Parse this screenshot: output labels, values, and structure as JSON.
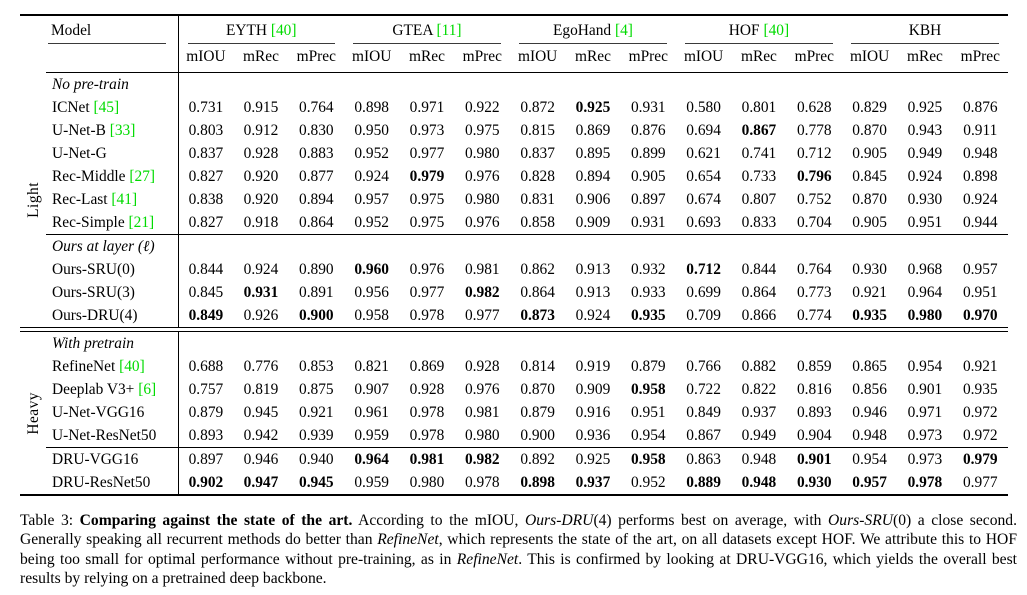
{
  "colors": {
    "citation_green": "#00db00",
    "rule_black": "#000000",
    "cmidrule_gray": "#3a3a3a"
  },
  "table": {
    "header": {
      "model": "Model",
      "metrics": [
        "mIOU",
        "mRec",
        "mPrec"
      ],
      "datasets": [
        {
          "name": "EYTH",
          "cite": "[40]"
        },
        {
          "name": "GTEA",
          "cite": "[11]"
        },
        {
          "name": "EgoHand",
          "cite": "[4]"
        },
        {
          "name": "HOF",
          "cite": "[40]"
        },
        {
          "name": "KBH",
          "cite": ""
        }
      ]
    },
    "groups": [
      {
        "label": "Light",
        "sections": [
          {
            "title": "No pre-train",
            "rows": [
              {
                "model": "ICNet",
                "cite": "[45]",
                "values": [
                  "0.731",
                  "0.915",
                  "0.764",
                  "0.898",
                  "0.971",
                  "0.922",
                  "0.872",
                  "0.925",
                  "0.931",
                  "0.580",
                  "0.801",
                  "0.628",
                  "0.829",
                  "0.925",
                  "0.876"
                ],
                "bold": [
                  7
                ]
              },
              {
                "model": "U-Net-B",
                "cite": "[33]",
                "values": [
                  "0.803",
                  "0.912",
                  "0.830",
                  "0.950",
                  "0.973",
                  "0.975",
                  "0.815",
                  "0.869",
                  "0.876",
                  "0.694",
                  "0.867",
                  "0.778",
                  "0.870",
                  "0.943",
                  "0.911"
                ],
                "bold": [
                  10
                ]
              },
              {
                "model": "U-Net-G",
                "cite": "",
                "values": [
                  "0.837",
                  "0.928",
                  "0.883",
                  "0.952",
                  "0.977",
                  "0.980",
                  "0.837",
                  "0.895",
                  "0.899",
                  "0.621",
                  "0.741",
                  "0.712",
                  "0.905",
                  "0.949",
                  "0.948"
                ],
                "bold": []
              },
              {
                "model": "Rec-Middle",
                "cite": "[27]",
                "values": [
                  "0.827",
                  "0.920",
                  "0.877",
                  "0.924",
                  "0.979",
                  "0.976",
                  "0.828",
                  "0.894",
                  "0.905",
                  "0.654",
                  "0.733",
                  "0.796",
                  "0.845",
                  "0.924",
                  "0.898"
                ],
                "bold": [
                  4,
                  11
                ]
              },
              {
                "model": "Rec-Last",
                "cite": "[41]",
                "values": [
                  "0.838",
                  "0.920",
                  "0.894",
                  "0.957",
                  "0.975",
                  "0.980",
                  "0.831",
                  "0.906",
                  "0.897",
                  "0.674",
                  "0.807",
                  "0.752",
                  "0.870",
                  "0.930",
                  "0.924"
                ],
                "bold": []
              },
              {
                "model": "Rec-Simple",
                "cite": "[21]",
                "values": [
                  "0.827",
                  "0.918",
                  "0.864",
                  "0.952",
                  "0.975",
                  "0.976",
                  "0.858",
                  "0.909",
                  "0.931",
                  "0.693",
                  "0.833",
                  "0.704",
                  "0.905",
                  "0.951",
                  "0.944"
                ],
                "bold": []
              }
            ]
          },
          {
            "title": "Ours at layer (ℓ)",
            "rows": [
              {
                "model": "Ours-SRU(0)",
                "cite": "",
                "values": [
                  "0.844",
                  "0.924",
                  "0.890",
                  "0.960",
                  "0.976",
                  "0.981",
                  "0.862",
                  "0.913",
                  "0.932",
                  "0.712",
                  "0.844",
                  "0.764",
                  "0.930",
                  "0.968",
                  "0.957"
                ],
                "bold": [
                  3,
                  9
                ]
              },
              {
                "model": "Ours-SRU(3)",
                "cite": "",
                "values": [
                  "0.845",
                  "0.931",
                  "0.891",
                  "0.956",
                  "0.977",
                  "0.982",
                  "0.864",
                  "0.913",
                  "0.933",
                  "0.699",
                  "0.864",
                  "0.773",
                  "0.921",
                  "0.964",
                  "0.951"
                ],
                "bold": [
                  1,
                  5
                ]
              },
              {
                "model": "Ours-DRU(4)",
                "cite": "",
                "values": [
                  "0.849",
                  "0.926",
                  "0.900",
                  "0.958",
                  "0.978",
                  "0.977",
                  "0.873",
                  "0.924",
                  "0.935",
                  "0.709",
                  "0.866",
                  "0.774",
                  "0.935",
                  "0.980",
                  "0.970"
                ],
                "bold": [
                  0,
                  2,
                  6,
                  8,
                  12,
                  13,
                  14
                ]
              }
            ]
          }
        ]
      },
      {
        "label": "Heavy",
        "sections": [
          {
            "title": "With pretrain",
            "rows": [
              {
                "model": "RefineNet",
                "cite": "[40]",
                "values": [
                  "0.688",
                  "0.776",
                  "0.853",
                  "0.821",
                  "0.869",
                  "0.928",
                  "0.814",
                  "0.919",
                  "0.879",
                  "0.766",
                  "0.882",
                  "0.859",
                  "0.865",
                  "0.954",
                  "0.921"
                ],
                "bold": []
              },
              {
                "model": "Deeplab V3+",
                "cite": "[6]",
                "values": [
                  "0.757",
                  "0.819",
                  "0.875",
                  "0.907",
                  "0.928",
                  "0.976",
                  "0.870",
                  "0.909",
                  "0.958",
                  "0.722",
                  "0.822",
                  "0.816",
                  "0.856",
                  "0.901",
                  "0.935"
                ],
                "bold": [
                  8
                ]
              },
              {
                "model": "U-Net-VGG16",
                "cite": "",
                "values": [
                  "0.879",
                  "0.945",
                  "0.921",
                  "0.961",
                  "0.978",
                  "0.981",
                  "0.879",
                  "0.916",
                  "0.951",
                  "0.849",
                  "0.937",
                  "0.893",
                  "0.946",
                  "0.971",
                  "0.972"
                ],
                "bold": []
              },
              {
                "model": "U-Net-ResNet50",
                "cite": "",
                "values": [
                  "0.893",
                  "0.942",
                  "0.939",
                  "0.959",
                  "0.978",
                  "0.980",
                  "0.900",
                  "0.936",
                  "0.954",
                  "0.867",
                  "0.949",
                  "0.904",
                  "0.948",
                  "0.973",
                  "0.972"
                ],
                "bold": []
              }
            ]
          },
          {
            "title": "",
            "rows": [
              {
                "model": "DRU-VGG16",
                "cite": "",
                "values": [
                  "0.897",
                  "0.946",
                  "0.940",
                  "0.964",
                  "0.981",
                  "0.982",
                  "0.892",
                  "0.925",
                  "0.958",
                  "0.863",
                  "0.948",
                  "0.901",
                  "0.954",
                  "0.973",
                  "0.979"
                ],
                "bold": [
                  3,
                  4,
                  5,
                  8,
                  11,
                  14
                ]
              },
              {
                "model": "DRU-ResNet50",
                "cite": "",
                "values": [
                  "0.902",
                  "0.947",
                  "0.945",
                  "0.959",
                  "0.980",
                  "0.978",
                  "0.898",
                  "0.937",
                  "0.952",
                  "0.889",
                  "0.948",
                  "0.930",
                  "0.957",
                  "0.978",
                  "0.977"
                ],
                "bold": [
                  0,
                  1,
                  2,
                  6,
                  7,
                  9,
                  10,
                  11,
                  12,
                  13
                ]
              }
            ]
          }
        ]
      }
    ]
  },
  "caption": {
    "prefix": "Table 3: ",
    "segments": [
      {
        "t": "Comparing against the state of the art.",
        "s": "bold"
      },
      {
        "t": "  According to the mIOU, ",
        "s": ""
      },
      {
        "t": "Ours-DRU",
        "s": "italic"
      },
      {
        "t": "(4) performs best on average, with ",
        "s": ""
      },
      {
        "t": "Ours-SRU",
        "s": "italic"
      },
      {
        "t": "(0) a close second. Generally speaking all recurrent methods do better than ",
        "s": ""
      },
      {
        "t": "RefineNet",
        "s": "italic"
      },
      {
        "t": ", which represents the state of the art, on all datasets except HOF. We attribute this to HOF being too small for optimal performance without pre-training, as in ",
        "s": ""
      },
      {
        "t": "RefineNet",
        "s": "italic"
      },
      {
        "t": ". This is confirmed by looking at DRU-VGG16, which yields the overall best results by relying on a pretrained deep backbone.",
        "s": ""
      }
    ]
  }
}
